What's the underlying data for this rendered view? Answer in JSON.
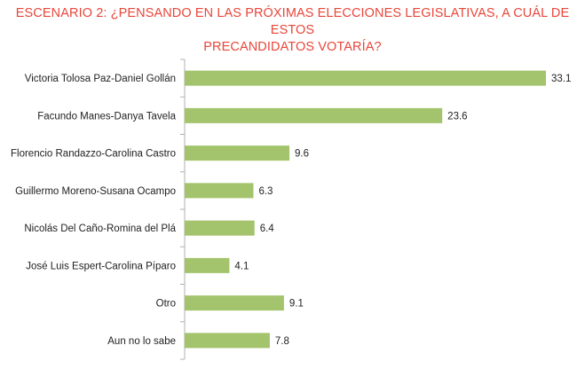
{
  "chart_data": {
    "type": "bar",
    "orientation": "horizontal",
    "title": "ESCENARIO 2: ¿PENSANDO EN LAS PRÓXIMAS ELECCIONES LEGISLATIVAS, A CUÁL DE ESTOS PRECANDIDATOS VOTARÍA?",
    "title_lines": [
      "ESCENARIO 2: ¿PENSANDO EN LAS PRÓXIMAS ELECCIONES LEGISLATIVAS, A CUÁL DE ESTOS",
      "PRECANDIDATOS VOTARÍA?"
    ],
    "categories": [
      "Victoria Tolosa Paz-Daniel Gollán",
      "Facundo Manes-Danya Tavela",
      "Florencio Randazzo-Carolina Castro",
      "Guillermo Moreno-Susana Ocampo",
      "Nicolás Del Caño-Romina del Plá",
      "José Luis Espert-Carolina Píparo",
      "Otro",
      "Aun no lo sabe"
    ],
    "values": [
      33.1,
      23.6,
      9.6,
      6.3,
      6.4,
      4.1,
      9.1,
      7.8
    ],
    "value_labels": [
      "33.1",
      "23.6",
      "9.6",
      "6.3",
      "6.4",
      "4.1",
      "9.1",
      "7.8"
    ],
    "xlim": [
      0,
      33.1
    ],
    "grid": false,
    "legend": "none",
    "colors": {
      "bar": "#a3c46c",
      "title": "#e8463a",
      "axis": "#b0b0b0",
      "text": "#222222"
    }
  }
}
